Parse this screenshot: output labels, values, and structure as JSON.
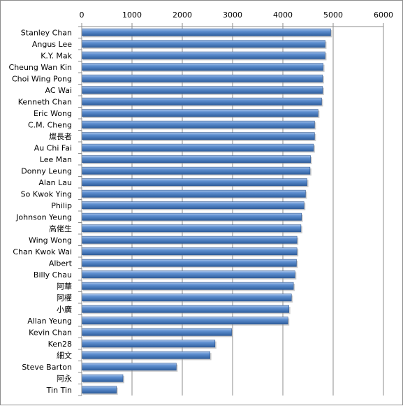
{
  "chart_data": {
    "type": "bar",
    "orientation": "horizontal",
    "title": "",
    "xlabel": "",
    "ylabel": "",
    "xlim": [
      0,
      6000
    ],
    "x_ticks": [
      "0",
      "1000",
      "2000",
      "3000",
      "4000",
      "5000",
      "6000"
    ],
    "x_tick_values": [
      0,
      1000,
      2000,
      3000,
      4000,
      5000,
      6000
    ],
    "grid": "vertical-major",
    "legend": "none",
    "bar_color": "#4a7ebb",
    "categories": [
      "Stanley Chan",
      "Angus Lee",
      "K.Y. Mak",
      "Cheung Wan Kin",
      "Choi Wing Pong",
      "AC Wai",
      "Kenneth Chan",
      "Eric Wong",
      "C.M. Cheng",
      "燦長者",
      "Au Chi Fai",
      "Lee Man",
      "Donny Leung",
      "Alan Lau",
      "So Kwok Ying",
      "Philip",
      "Johnson Yeung",
      "高佬生",
      "Wing Wong",
      "Chan Kwok Wai",
      "Albert",
      "Billy Chau",
      "阿華",
      "阿權",
      "小廣",
      "Allan Yeung",
      "Kevin Chan",
      "Ken28",
      "細文",
      "Steve Barton",
      "阿永",
      "Tin Tin"
    ],
    "values": [
      4950,
      4840,
      4840,
      4800,
      4790,
      4790,
      4770,
      4700,
      4630,
      4630,
      4610,
      4550,
      4540,
      4480,
      4450,
      4420,
      4370,
      4360,
      4280,
      4280,
      4270,
      4240,
      4210,
      4170,
      4120,
      4100,
      2980,
      2650,
      2550,
      1880,
      820,
      690
    ]
  }
}
